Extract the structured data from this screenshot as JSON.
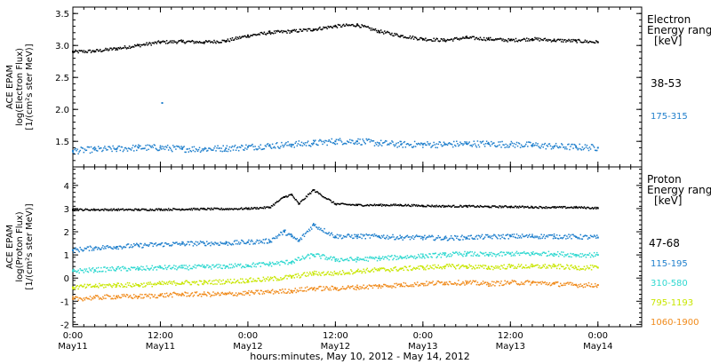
{
  "chart_data": [
    {
      "type": "scatter",
      "panel": "electron",
      "ylabel_lines": [
        "ACE EPAM",
        "log(Electron Flux)",
        "[1/(cm²s ster MeV)]"
      ],
      "ylim": [
        1.1,
        3.6
      ],
      "yticks": [
        "1.5",
        "2.0",
        "2.5",
        "3.0",
        "3.5"
      ],
      "grid": false,
      "legend_title": [
        "Electron",
        "Energy ranges",
        "[keV]"
      ],
      "series": [
        {
          "name": "38-53",
          "color": "#000000",
          "x": [
            0,
            6,
            12,
            18,
            24,
            30,
            36,
            42,
            48,
            54,
            60,
            66,
            72,
            78,
            84,
            90,
            96,
            102,
            108,
            114,
            120,
            126,
            132,
            138,
            144
          ],
          "y": [
            2.9,
            2.91,
            2.95,
            3.0,
            3.05,
            3.06,
            3.05,
            3.07,
            3.15,
            3.2,
            3.22,
            3.25,
            3.3,
            3.32,
            3.22,
            3.15,
            3.1,
            3.08,
            3.12,
            3.1,
            3.08,
            3.1,
            3.08,
            3.07,
            3.05
          ]
        },
        {
          "name": "175-315",
          "color": "#1f7fcc",
          "x": [
            0,
            6,
            12,
            18,
            24,
            30,
            36,
            42,
            48,
            54,
            60,
            66,
            72,
            78,
            84,
            90,
            96,
            102,
            108,
            114,
            120,
            126,
            132,
            138,
            144
          ],
          "y": [
            1.35,
            1.37,
            1.38,
            1.4,
            1.4,
            1.38,
            1.38,
            1.39,
            1.41,
            1.43,
            1.45,
            1.47,
            1.5,
            1.5,
            1.47,
            1.45,
            1.45,
            1.45,
            1.46,
            1.46,
            1.45,
            1.44,
            1.42,
            1.41,
            1.4
          ]
        }
      ]
    },
    {
      "type": "scatter",
      "panel": "proton",
      "ylabel_lines": [
        "ACE EPAM",
        "log(Proton Flux)",
        "[1/(cm²s ster MeV)]"
      ],
      "ylim": [
        -2.1,
        4.8
      ],
      "yticks": [
        "-2",
        "-1",
        "0",
        "1",
        "2",
        "3",
        "4"
      ],
      "grid": false,
      "legend_title": [
        "Proton",
        "Energy ranges",
        "[keV]"
      ],
      "series": [
        {
          "name": "47-68",
          "color": "#000000",
          "x": [
            0,
            6,
            12,
            18,
            24,
            30,
            36,
            42,
            48,
            54,
            58,
            60,
            62,
            66,
            72,
            78,
            84,
            90,
            96,
            102,
            108,
            114,
            120,
            126,
            132,
            138,
            144
          ],
          "y": [
            2.95,
            2.95,
            2.95,
            2.95,
            2.96,
            2.97,
            2.98,
            2.98,
            3.0,
            3.05,
            3.5,
            3.6,
            3.2,
            3.8,
            3.2,
            3.15,
            3.15,
            3.15,
            3.12,
            3.1,
            3.1,
            3.08,
            3.08,
            3.06,
            3.05,
            3.05,
            3.02
          ]
        },
        {
          "name": "115-195",
          "color": "#1f7fcc",
          "x": [
            0,
            6,
            12,
            18,
            24,
            30,
            36,
            42,
            48,
            54,
            58,
            60,
            62,
            66,
            72,
            78,
            84,
            90,
            96,
            102,
            108,
            114,
            120,
            126,
            132,
            138,
            144
          ],
          "y": [
            1.2,
            1.3,
            1.35,
            1.4,
            1.45,
            1.48,
            1.5,
            1.5,
            1.55,
            1.6,
            2.0,
            1.8,
            1.6,
            2.3,
            1.8,
            1.8,
            1.8,
            1.75,
            1.75,
            1.72,
            1.75,
            1.78,
            1.8,
            1.8,
            1.8,
            1.78,
            1.75
          ]
        },
        {
          "name": "310-580",
          "color": "#2fd8d0",
          "x": [
            0,
            6,
            12,
            18,
            24,
            30,
            36,
            42,
            48,
            54,
            60,
            66,
            72,
            78,
            84,
            90,
            96,
            102,
            108,
            114,
            120,
            126,
            132,
            138,
            144
          ],
          "y": [
            0.3,
            0.35,
            0.4,
            0.4,
            0.45,
            0.45,
            0.48,
            0.5,
            0.55,
            0.6,
            0.7,
            1.0,
            0.8,
            0.8,
            0.85,
            0.9,
            0.95,
            1.0,
            1.05,
            1.0,
            1.05,
            1.05,
            1.05,
            1.0,
            1.0
          ]
        },
        {
          "name": "795-1193",
          "color": "#c8e600",
          "x": [
            0,
            6,
            12,
            18,
            24,
            30,
            36,
            42,
            48,
            54,
            60,
            66,
            72,
            78,
            84,
            90,
            96,
            102,
            108,
            114,
            120,
            126,
            132,
            138,
            144
          ],
          "y": [
            -0.4,
            -0.35,
            -0.3,
            -0.3,
            -0.25,
            -0.2,
            -0.2,
            -0.15,
            -0.1,
            -0.05,
            0.05,
            0.2,
            0.2,
            0.3,
            0.35,
            0.4,
            0.45,
            0.5,
            0.5,
            0.45,
            0.5,
            0.5,
            0.5,
            0.45,
            0.45
          ]
        },
        {
          "name": "1060-1900",
          "color": "#f08a1a",
          "x": [
            0,
            6,
            12,
            18,
            24,
            30,
            36,
            42,
            48,
            54,
            60,
            66,
            72,
            78,
            84,
            90,
            96,
            102,
            108,
            114,
            120,
            126,
            132,
            138,
            144
          ],
          "y": [
            -0.9,
            -0.85,
            -0.8,
            -0.8,
            -0.75,
            -0.7,
            -0.7,
            -0.7,
            -0.65,
            -0.6,
            -0.55,
            -0.45,
            -0.45,
            -0.4,
            -0.35,
            -0.3,
            -0.25,
            -0.2,
            -0.2,
            -0.25,
            -0.2,
            -0.2,
            -0.25,
            -0.3,
            -0.3
          ]
        }
      ]
    }
  ],
  "xaxis": {
    "xlim_hours": [
      0,
      156
    ],
    "ticks": [
      {
        "hours": 0,
        "time": "0:00",
        "date": "May11"
      },
      {
        "hours": 24,
        "time": "12:00",
        "date": "May11"
      },
      {
        "hours": 48,
        "time": "0:00",
        "date": "May12"
      },
      {
        "hours": 72,
        "time": "12:00",
        "date": "May12"
      },
      {
        "hours": 96,
        "time": "0:00",
        "date": "May13"
      },
      {
        "hours": 120,
        "time": "12:00",
        "date": "May13"
      },
      {
        "hours": 144,
        "time": "0:00",
        "date": "May14"
      }
    ],
    "label": "hours:minutes, May 10, 2012 - May 14, 2012"
  },
  "outliers": [
    {
      "panel": "electron",
      "series": "175-315",
      "x": 24.5,
      "y": 2.1
    }
  ]
}
